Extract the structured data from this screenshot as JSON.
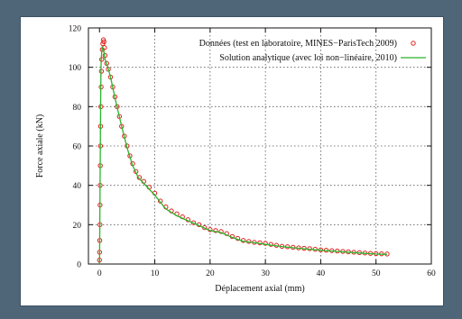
{
  "chart_data": {
    "type": "scatter",
    "xlabel": "Déplacement axial (mm)",
    "ylabel": "Force axiale (kN)",
    "xlim": [
      -2,
      60
    ],
    "ylim": [
      0,
      120
    ],
    "xticks": [
      "0",
      "10",
      "20",
      "30",
      "40",
      "50",
      "60"
    ],
    "yticks": [
      "0",
      "20",
      "40",
      "60",
      "80",
      "100",
      "120"
    ],
    "grid": true,
    "legend_position": "top-right",
    "series": [
      {
        "name": "Données (test en laboratoire, MINES−ParisTech 2009)",
        "style": "circles",
        "color": "#e0201c",
        "points": [
          [
            0.0,
            2
          ],
          [
            0.02,
            6
          ],
          [
            0.05,
            12
          ],
          [
            0.08,
            20
          ],
          [
            0.1,
            30
          ],
          [
            0.12,
            40
          ],
          [
            0.15,
            50
          ],
          [
            0.18,
            60
          ],
          [
            0.2,
            70
          ],
          [
            0.25,
            80
          ],
          [
            0.3,
            90
          ],
          [
            0.35,
            98
          ],
          [
            0.4,
            104
          ],
          [
            0.5,
            109
          ],
          [
            0.6,
            112
          ],
          [
            0.7,
            114
          ],
          [
            0.8,
            113
          ],
          [
            0.9,
            110
          ],
          [
            1.0,
            106
          ],
          [
            1.3,
            102
          ],
          [
            1.6,
            99
          ],
          [
            2.0,
            95
          ],
          [
            2.4,
            90
          ],
          [
            2.8,
            85
          ],
          [
            3.2,
            80
          ],
          [
            3.6,
            75
          ],
          [
            4.0,
            70
          ],
          [
            4.5,
            65
          ],
          [
            5.0,
            60
          ],
          [
            5.5,
            55
          ],
          [
            6.0,
            51
          ],
          [
            6.6,
            47
          ],
          [
            7.2,
            44
          ],
          [
            8.0,
            42
          ],
          [
            9.0,
            39
          ],
          [
            10.0,
            36
          ],
          [
            11.0,
            32
          ],
          [
            12.0,
            29
          ],
          [
            13.0,
            27
          ],
          [
            14.0,
            25.5
          ],
          [
            15.0,
            24
          ],
          [
            16.0,
            22.5
          ],
          [
            17.0,
            21
          ],
          [
            18.0,
            20
          ],
          [
            19.0,
            18.5
          ],
          [
            20.0,
            17.5
          ],
          [
            21.0,
            17
          ],
          [
            22.0,
            16.5
          ],
          [
            23.0,
            15.5
          ],
          [
            24.0,
            14
          ],
          [
            25.0,
            13
          ],
          [
            26.0,
            12
          ],
          [
            27.0,
            11.5
          ],
          [
            28.0,
            11
          ],
          [
            29.0,
            10.8
          ],
          [
            30.0,
            10.5
          ],
          [
            31.0,
            10
          ],
          [
            32.0,
            9.5
          ],
          [
            33.0,
            9
          ],
          [
            34.0,
            8.8
          ],
          [
            35.0,
            8.5
          ],
          [
            36.0,
            8.2
          ],
          [
            37.0,
            8
          ],
          [
            38.0,
            7.8
          ],
          [
            39.0,
            7.5
          ],
          [
            40.0,
            7.2
          ],
          [
            41.0,
            7
          ],
          [
            42.0,
            6.8
          ],
          [
            43.0,
            6.6
          ],
          [
            44.0,
            6.4
          ],
          [
            45.0,
            6.2
          ],
          [
            46.0,
            6
          ],
          [
            47.0,
            5.8
          ],
          [
            48.0,
            5.6
          ],
          [
            49.0,
            5.4
          ],
          [
            50.0,
            5.3
          ],
          [
            51.0,
            5.2
          ],
          [
            52.0,
            5.1
          ]
        ]
      },
      {
        "name": "Solution analytique (avec loi non−linéaire, 2010)",
        "style": "line",
        "color": "#2bb52b",
        "points": [
          [
            0.0,
            0
          ],
          [
            0.05,
            20
          ],
          [
            0.1,
            40
          ],
          [
            0.15,
            60
          ],
          [
            0.2,
            80
          ],
          [
            0.25,
            95
          ],
          [
            0.3,
            103
          ],
          [
            0.4,
            108
          ],
          [
            0.5,
            110
          ],
          [
            0.8,
            108
          ],
          [
            1.0,
            104
          ],
          [
            1.5,
            100
          ],
          [
            2.0,
            95
          ],
          [
            3.0,
            82
          ],
          [
            4.0,
            70
          ],
          [
            5.0,
            59
          ],
          [
            6.0,
            50
          ],
          [
            7.0,
            44
          ],
          [
            8.0,
            41
          ],
          [
            10.0,
            35
          ],
          [
            12.0,
            28
          ],
          [
            14.0,
            24.5
          ],
          [
            16.0,
            22
          ],
          [
            18.0,
            19.5
          ],
          [
            20.0,
            17
          ],
          [
            22.0,
            16
          ],
          [
            24.0,
            13.5
          ],
          [
            26.0,
            11.5
          ],
          [
            28.0,
            10.8
          ],
          [
            30.0,
            10
          ],
          [
            32.0,
            9.2
          ],
          [
            34.0,
            8.5
          ],
          [
            36.0,
            8
          ],
          [
            38.0,
            7.5
          ],
          [
            40.0,
            7
          ],
          [
            42.0,
            6.6
          ],
          [
            44.0,
            6.2
          ],
          [
            46.0,
            5.8
          ],
          [
            48.0,
            5.4
          ],
          [
            50.0,
            5.1
          ],
          [
            52.0,
            4.9
          ]
        ]
      }
    ]
  }
}
